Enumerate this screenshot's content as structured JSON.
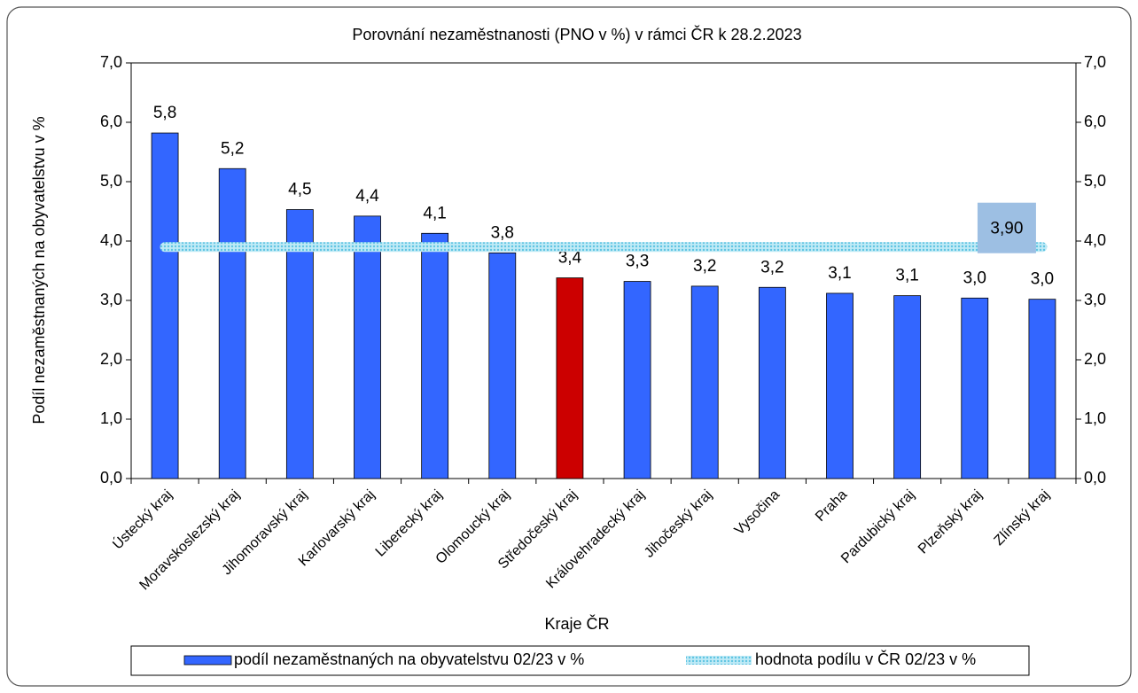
{
  "chart_data": {
    "type": "bar",
    "title": "Porovnání nezaměstnanosti (PNO v %) v rámci ČR k 28.2.2023",
    "x_label": "Kraje ČR",
    "y_label": "Podíl nezaměstnaných na obyvatelstvu v %",
    "categories": [
      "Ústecký kraj",
      "Moravskoslezský kraj",
      "Jihomoravský kraj",
      "Karlovarský kraj",
      "Liberecký kraj",
      "Olomoucký kraj",
      "Středočeský kraj",
      "Královehradecký kraj",
      "Jihočeský kraj",
      "Vysočina",
      "Praha",
      "Pardubický kraj",
      "Plzeňský kraj",
      "Zlínský kraj"
    ],
    "series": [
      {
        "name": "podíl nezaměstnaných na obyvatelstvu 02/23 v %",
        "color": "#3366ff",
        "colors": [
          "#3366ff",
          "#3366ff",
          "#3366ff",
          "#3366ff",
          "#3366ff",
          "#3366ff",
          "#cc0000",
          "#3366ff",
          "#3366ff",
          "#3366ff",
          "#3366ff",
          "#3366ff",
          "#3366ff",
          "#3366ff"
        ],
        "values": [
          5.82,
          5.22,
          4.53,
          4.42,
          4.13,
          3.8,
          3.38,
          3.32,
          3.24,
          3.22,
          3.12,
          3.08,
          3.04,
          3.02
        ],
        "value_labels": [
          "5,8",
          "5,2",
          "4,5",
          "4,4",
          "4,1",
          "3,8",
          "3,4",
          "3,3",
          "3,2",
          "3,2",
          "3,1",
          "3,1",
          "3,0",
          "3,0"
        ]
      },
      {
        "name": "hodnota podílu v ČR 02/23 v %",
        "color": "#8fd8ee",
        "type": "line",
        "axis": "y2",
        "values": [
          3.9,
          3.9,
          3.9,
          3.9,
          3.9,
          3.9,
          3.9,
          3.9,
          3.9,
          3.9,
          3.9,
          3.9,
          3.9,
          3.9
        ],
        "value_labels": [
          null,
          null,
          null,
          null,
          null,
          null,
          null,
          null,
          null,
          null,
          null,
          null,
          null,
          "3,90"
        ]
      }
    ],
    "ylim": [
      0,
      7
    ],
    "yticks": [
      {
        "value": 0,
        "label": "0,0"
      },
      {
        "value": 1,
        "label": "1,0"
      },
      {
        "value": 2,
        "label": "2,0"
      },
      {
        "value": 3,
        "label": "3,0"
      },
      {
        "value": 4,
        "label": "4,0"
      },
      {
        "value": 5,
        "label": "5,0"
      },
      {
        "value": 6,
        "label": "6,0"
      },
      {
        "value": 7,
        "label": "7,0"
      }
    ],
    "y2lim": [
      0,
      7
    ],
    "y2ticks": [
      {
        "value": 0,
        "label": "0,0"
      },
      {
        "value": 1,
        "label": "1,0"
      },
      {
        "value": 2,
        "label": "2,0"
      },
      {
        "value": 3,
        "label": "3,0"
      },
      {
        "value": 4,
        "label": "4,0"
      },
      {
        "value": 5,
        "label": "5,0"
      },
      {
        "value": 6,
        "label": "6,0"
      },
      {
        "value": 7,
        "label": "7,0"
      }
    ],
    "grid": false,
    "legend": "bottom"
  }
}
